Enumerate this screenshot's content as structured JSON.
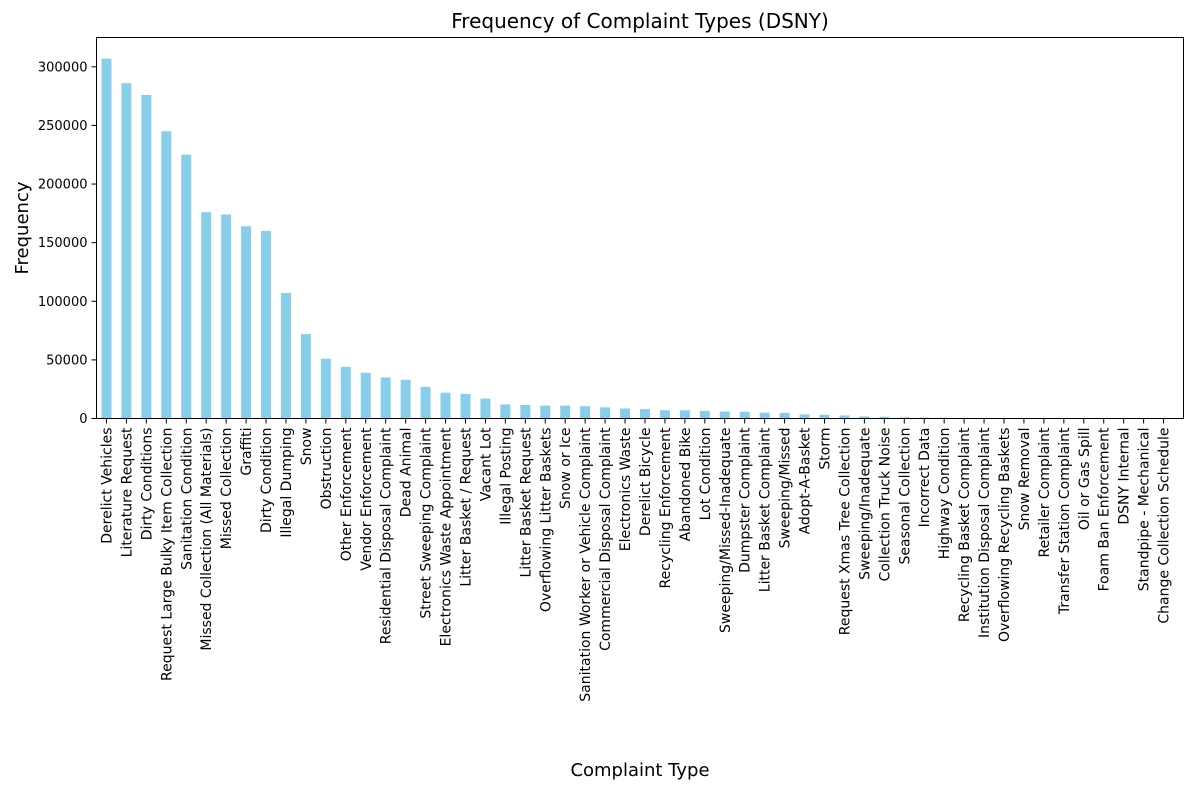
{
  "chart_data": {
    "type": "bar",
    "title": "Frequency of Complaint Types (DSNY)",
    "xlabel": "Complaint Type",
    "ylabel": "Frequency",
    "ylim": [
      0,
      325000
    ],
    "yticks": [
      0,
      50000,
      100000,
      150000,
      200000,
      250000,
      300000
    ],
    "grid": false,
    "bar_color": "#87CEEB",
    "categories": [
      "Derelict Vehicles",
      "Literature Request",
      "Dirty Conditions",
      "Request Large Bulky Item Collection",
      "Sanitation Condition",
      "Missed Collection (All Materials)",
      "Missed Collection",
      "Graffiti",
      "Dirty Condition",
      "Illegal Dumping",
      "Snow",
      "Obstruction",
      "Other Enforcement",
      "Vendor Enforcement",
      "Residential Disposal Complaint",
      "Dead Animal",
      "Street Sweeping Complaint",
      "Electronics Waste Appointment",
      "Litter Basket / Request",
      "Vacant Lot",
      "Illegal Posting",
      "Litter Basket Request",
      "Overflowing Litter Baskets",
      "Snow or Ice",
      "Sanitation Worker or Vehicle Complaint",
      "Commercial Disposal Complaint",
      "Electronics Waste",
      "Derelict Bicycle",
      "Recycling Enforcement",
      "Abandoned Bike",
      "Lot Condition",
      "Sweeping/Missed-Inadequate",
      "Dumpster Complaint",
      "Litter Basket Complaint",
      "Sweeping/Missed",
      "Adopt-A-Basket",
      "Storm",
      "Request Xmas Tree Collection",
      "Sweeping/Inadequate",
      "Collection Truck Noise",
      "Seasonal Collection",
      "Incorrect Data",
      "Highway Condition",
      "Recycling Basket Complaint",
      "Institution Disposal Complaint",
      "Overflowing Recycling Baskets",
      "Snow Removal",
      "Retailer Complaint",
      "Transfer Station Complaint",
      "Oil or Gas Spill",
      "Foam Ban Enforcement",
      "DSNY Internal",
      "Standpipe - Mechanical",
      "Change Collection Schedule"
    ],
    "values": [
      307000,
      286000,
      276000,
      245000,
      225000,
      176000,
      174000,
      164000,
      160000,
      107000,
      72000,
      51000,
      44000,
      39000,
      35000,
      33000,
      27000,
      22000,
      21000,
      17000,
      12000,
      11500,
      11000,
      11000,
      10500,
      9500,
      8500,
      8000,
      7000,
      7000,
      6500,
      6000,
      5800,
      5000,
      4800,
      3500,
      3200,
      2600,
      1800,
      1500,
      1000,
      800,
      700,
      500,
      400,
      300,
      250,
      200,
      150,
      100,
      100,
      80,
      60,
      40
    ]
  }
}
